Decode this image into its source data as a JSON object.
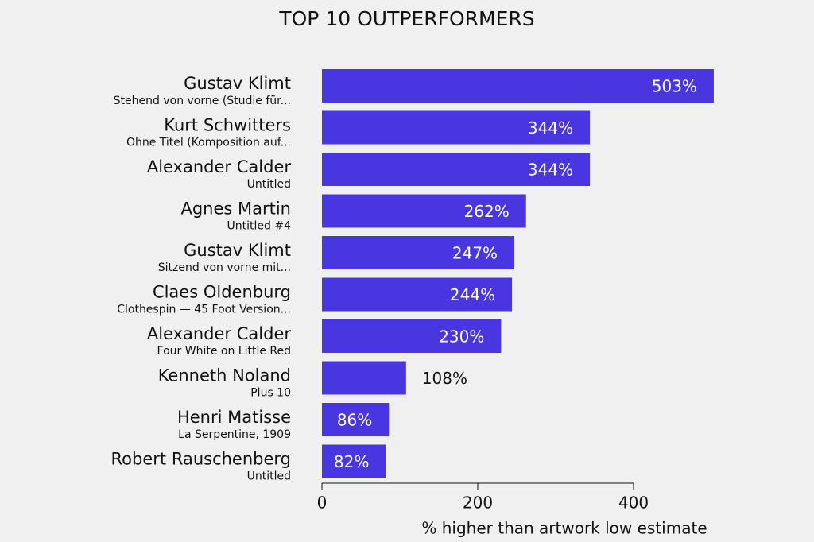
{
  "chart_data": {
    "type": "bar",
    "orientation": "horizontal",
    "title": "TOP 10 OUTPERFORMERS",
    "x_label": "% higher than artwork low estimate",
    "categories": [
      "Gustav Klimt",
      "Kurt Schwitters",
      "Alexander Calder",
      "Agnes Martin",
      "Gustav Klimt",
      "Claes Oldenburg",
      "Alexander Calder",
      "Kenneth Noland",
      "Henri Matisse",
      "Robert Rauschenberg"
    ],
    "artworks": [
      "Stehend von vorne (Studie für...",
      "Ohne Titel (Komposition auf...",
      "Untitled",
      "Untitled #4",
      "Sitzend von vorne mit...",
      "Clothespin — 45 Foot Version...",
      "Four White on Little Red",
      "Plus 10",
      "La Serpentine, 1909",
      "Untitled"
    ],
    "values": [
      503,
      344,
      344,
      262,
      247,
      244,
      230,
      108,
      86,
      82
    ],
    "value_labels": [
      "503%",
      "344%",
      "344%",
      "262%",
      "247%",
      "244%",
      "230%",
      "108%",
      "86%",
      "82%"
    ],
    "color": "#4a36e0",
    "xlim": [
      0,
      400
    ],
    "xticks": [
      0,
      200,
      400
    ]
  }
}
